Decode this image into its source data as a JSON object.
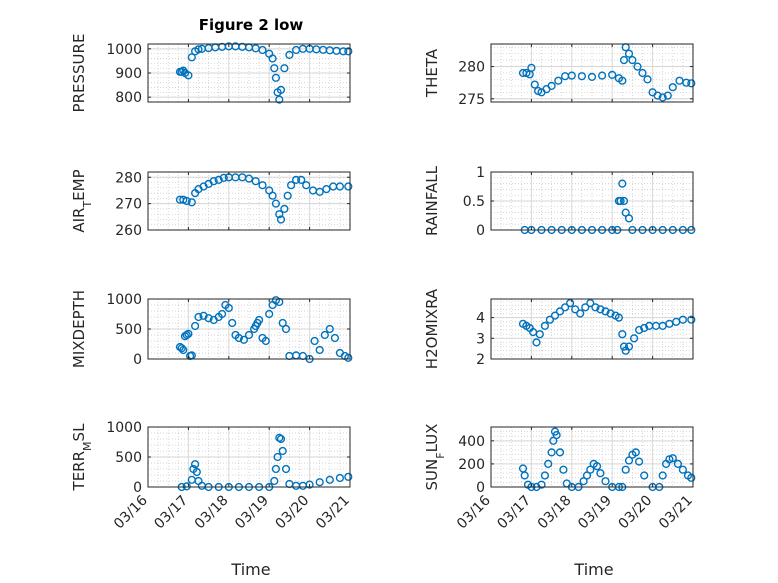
{
  "figure": {
    "title": "Figure 2 low"
  },
  "style": {
    "marker_color": "#0072BD",
    "axis_color": "#262626",
    "grid_color": "#d9d9d9"
  },
  "x_axis": {
    "label": "Time",
    "tick_labels": [
      "03/16",
      "03/17",
      "03/18",
      "03/19",
      "03/20",
      "03/21"
    ]
  },
  "chart_data": [
    {
      "type": "scatter",
      "ylabel": "PRESSURE",
      "ylim": [
        780,
        1020
      ],
      "yticks": [
        800,
        900,
        1000
      ],
      "grid": true,
      "x": [
        "03/16 19:00",
        "03/16 20:00",
        "03/16 21:00",
        "03/16 22:00",
        "03/17 00:00",
        "03/17 02:00",
        "03/17 04:00",
        "03/17 06:00",
        "03/17 08:00",
        "03/17 12:00",
        "03/17 16:00",
        "03/17 20:00",
        "03/18 00:00",
        "03/18 04:00",
        "03/18 08:00",
        "03/18 12:00",
        "03/18 16:00",
        "03/18 20:00",
        "03/19 00:00",
        "03/19 02:00",
        "03/19 03:00",
        "03/19 04:00",
        "03/19 05:00",
        "03/19 06:00",
        "03/19 07:00",
        "03/19 09:00",
        "03/19 12:00",
        "03/19 16:00",
        "03/19 20:00",
        "03/20 00:00",
        "03/20 04:00",
        "03/20 08:00",
        "03/20 12:00",
        "03/20 16:00",
        "03/20 20:00",
        "03/20 23:00"
      ],
      "values": [
        905,
        905,
        910,
        900,
        890,
        965,
        990,
        998,
        1000,
        1003,
        1006,
        1008,
        1010,
        1010,
        1008,
        1006,
        1002,
        995,
        980,
        960,
        920,
        880,
        820,
        790,
        830,
        920,
        975,
        995,
        1000,
        1000,
        998,
        996,
        994,
        992,
        990,
        990
      ]
    },
    {
      "type": "scatter",
      "ylabel": "THETA",
      "ylim": [
        274.5,
        283.5
      ],
      "yticks": [
        275,
        280
      ],
      "grid": true,
      "x": [
        "03/16 19:00",
        "03/16 21:00",
        "03/16 23:00",
        "03/17 00:00",
        "03/17 02:00",
        "03/17 04:00",
        "03/17 06:00",
        "03/17 09:00",
        "03/17 12:00",
        "03/17 16:00",
        "03/17 20:00",
        "03/18 00:00",
        "03/18 06:00",
        "03/18 12:00",
        "03/18 18:00",
        "03/19 00:00",
        "03/19 04:00",
        "03/19 06:00",
        "03/19 07:00",
        "03/19 08:00",
        "03/19 10:00",
        "03/19 12:00",
        "03/19 15:00",
        "03/19 18:00",
        "03/19 21:00",
        "03/20 00:00",
        "03/20 03:00",
        "03/20 06:00",
        "03/20 09:00",
        "03/20 12:00",
        "03/20 16:00",
        "03/20 20:00",
        "03/20 23:00"
      ],
      "values": [
        279,
        279,
        278.8,
        279.8,
        277.2,
        276.2,
        276,
        276.5,
        277,
        277.8,
        278.5,
        278.6,
        278.5,
        278.4,
        278.6,
        278.7,
        278.2,
        277.8,
        281,
        283,
        282,
        281,
        280,
        279,
        278,
        276,
        275.5,
        275.2,
        275.5,
        276.8,
        277.8,
        277.5,
        277.4
      ]
    },
    {
      "type": "scatter",
      "ylabel": "AIR_TEMP",
      "ylim": [
        260,
        282
      ],
      "yticks": [
        260,
        270,
        280
      ],
      "grid": true,
      "x": [
        "03/16 19:00",
        "03/16 21:00",
        "03/16 23:00",
        "03/17 02:00",
        "03/17 04:00",
        "03/17 06:00",
        "03/17 09:00",
        "03/17 12:00",
        "03/17 15:00",
        "03/17 18:00",
        "03/17 21:00",
        "03/18 00:00",
        "03/18 04:00",
        "03/18 08:00",
        "03/18 12:00",
        "03/18 16:00",
        "03/18 20:00",
        "03/19 00:00",
        "03/19 02:00",
        "03/19 04:00",
        "03/19 06:00",
        "03/19 07:00",
        "03/19 09:00",
        "03/19 11:00",
        "03/19 13:00",
        "03/19 16:00",
        "03/19 19:00",
        "03/19 22:00",
        "03/20 02:00",
        "03/20 06:00",
        "03/20 10:00",
        "03/20 14:00",
        "03/20 18:00",
        "03/20 23:00"
      ],
      "values": [
        271.5,
        271.5,
        271,
        270.5,
        274,
        275.5,
        276.5,
        277.5,
        278.5,
        279,
        279.8,
        280,
        280,
        280,
        279.5,
        278.5,
        277,
        275,
        273,
        270,
        266,
        264,
        268,
        273,
        277,
        279,
        279,
        277,
        275,
        274.5,
        275.5,
        276.5,
        276.5,
        276.5
      ]
    },
    {
      "type": "scatter",
      "ylabel": "RAINFALL",
      "ylim": [
        0,
        1
      ],
      "yticks": [
        0,
        0.5,
        1
      ],
      "grid": true,
      "x": [
        "03/16 20:00",
        "03/17 00:00",
        "03/17 06:00",
        "03/17 12:00",
        "03/17 18:00",
        "03/18 00:00",
        "03/18 06:00",
        "03/18 12:00",
        "03/18 18:00",
        "03/19 00:00",
        "03/19 03:00",
        "03/19 04:00",
        "03/19 05:00",
        "03/19 06:00",
        "03/19 07:00",
        "03/19 08:00",
        "03/19 10:00",
        "03/19 12:00",
        "03/19 18:00",
        "03/20 00:00",
        "03/20 06:00",
        "03/20 12:00",
        "03/20 18:00",
        "03/20 23:00"
      ],
      "values": [
        0,
        0,
        0,
        0,
        0,
        0,
        0,
        0,
        0,
        0,
        0,
        0.5,
        0.5,
        0.8,
        0.5,
        0.3,
        0.2,
        0,
        0,
        0,
        0,
        0,
        0,
        0
      ]
    },
    {
      "type": "scatter",
      "ylabel": "MIXDEPTH",
      "ylim": [
        0,
        1000
      ],
      "yticks": [
        0,
        500,
        1000
      ],
      "grid": true,
      "x": [
        "03/16 19:00",
        "03/16 20:00",
        "03/16 21:00",
        "03/16 22:00",
        "03/16 23:00",
        "03/17 00:00",
        "03/17 01:00",
        "03/17 02:00",
        "03/17 04:00",
        "03/17 06:00",
        "03/17 09:00",
        "03/17 12:00",
        "03/17 15:00",
        "03/17 18:00",
        "03/17 20:00",
        "03/17 22:00",
        "03/18 00:00",
        "03/18 02:00",
        "03/18 04:00",
        "03/18 06:00",
        "03/18 09:00",
        "03/18 12:00",
        "03/18 15:00",
        "03/18 16:00",
        "03/18 17:00",
        "03/18 18:00",
        "03/18 20:00",
        "03/18 22:00",
        "03/19 00:00",
        "03/19 02:00",
        "03/19 04:00",
        "03/19 06:00",
        "03/19 08:00",
        "03/19 10:00",
        "03/19 12:00",
        "03/19 16:00",
        "03/19 20:00",
        "03/20 00:00",
        "03/20 03:00",
        "03/20 06:00",
        "03/20 09:00",
        "03/20 12:00",
        "03/20 15:00",
        "03/20 18:00",
        "03/20 21:00",
        "03/20 23:00"
      ],
      "values": [
        200,
        180,
        150,
        380,
        400,
        420,
        50,
        60,
        550,
        700,
        720,
        680,
        650,
        700,
        750,
        900,
        850,
        600,
        400,
        350,
        320,
        400,
        500,
        550,
        600,
        650,
        350,
        300,
        750,
        900,
        980,
        950,
        600,
        500,
        50,
        60,
        50,
        0,
        300,
        150,
        400,
        500,
        350,
        100,
        50,
        20
      ]
    },
    {
      "type": "scatter",
      "ylabel": "H2OMIXRA",
      "ylim": [
        2,
        4.9
      ],
      "yticks": [
        2,
        3,
        4
      ],
      "grid": true,
      "x": [
        "03/16 19:00",
        "03/16 21:00",
        "03/16 23:00",
        "03/17 01:00",
        "03/17 03:00",
        "03/17 05:00",
        "03/17 08:00",
        "03/17 11:00",
        "03/17 14:00",
        "03/17 17:00",
        "03/17 20:00",
        "03/17 23:00",
        "03/18 02:00",
        "03/18 05:00",
        "03/18 08:00",
        "03/18 11:00",
        "03/18 14:00",
        "03/18 17:00",
        "03/18 20:00",
        "03/18 23:00",
        "03/19 02:00",
        "03/19 04:00",
        "03/19 06:00",
        "03/19 07:00",
        "03/19 08:00",
        "03/19 10:00",
        "03/19 13:00",
        "03/19 16:00",
        "03/19 19:00",
        "03/19 22:00",
        "03/20 02:00",
        "03/20 06:00",
        "03/20 10:00",
        "03/20 14:00",
        "03/20 18:00",
        "03/20 23:00"
      ],
      "values": [
        3.7,
        3.6,
        3.5,
        3.3,
        2.8,
        3.2,
        3.6,
        3.9,
        4.1,
        4.3,
        4.5,
        4.7,
        4.4,
        4.2,
        4.5,
        4.7,
        4.5,
        4.4,
        4.3,
        4.2,
        4.1,
        4.0,
        3.2,
        2.6,
        2.4,
        2.6,
        3.0,
        3.4,
        3.5,
        3.6,
        3.6,
        3.6,
        3.7,
        3.8,
        3.9,
        3.9
      ]
    },
    {
      "type": "scatter",
      "ylabel": "TERR_MSL",
      "ylim": [
        0,
        1000
      ],
      "yticks": [
        0,
        500,
        1000
      ],
      "grid": true,
      "x": [
        "03/16 20:00",
        "03/16 23:00",
        "03/17 02:00",
        "03/17 03:00",
        "03/17 04:00",
        "03/17 05:00",
        "03/17 06:00",
        "03/17 08:00",
        "03/17 12:00",
        "03/17 18:00",
        "03/18 00:00",
        "03/18 06:00",
        "03/18 12:00",
        "03/18 18:00",
        "03/19 00:00",
        "03/19 03:00",
        "03/19 04:00",
        "03/19 05:00",
        "03/19 06:00",
        "03/19 07:00",
        "03/19 08:00",
        "03/19 10:00",
        "03/19 12:00",
        "03/19 16:00",
        "03/19 20:00",
        "03/20 00:00",
        "03/20 06:00",
        "03/20 12:00",
        "03/20 18:00",
        "03/20 23:00"
      ],
      "values": [
        0,
        10,
        120,
        300,
        380,
        250,
        100,
        20,
        0,
        0,
        0,
        0,
        0,
        0,
        0,
        100,
        300,
        500,
        820,
        800,
        600,
        300,
        50,
        20,
        20,
        40,
        80,
        120,
        150,
        170
      ]
    },
    {
      "type": "scatter",
      "ylabel": "SUN_FLUX",
      "ylim": [
        0,
        520
      ],
      "yticks": [
        0,
        200,
        400
      ],
      "grid": true,
      "x": [
        "03/16 19:00",
        "03/16 20:00",
        "03/16 22:00",
        "03/17 00:00",
        "03/17 03:00",
        "03/17 06:00",
        "03/17 08:00",
        "03/17 10:00",
        "03/17 12:00",
        "03/17 13:00",
        "03/17 14:00",
        "03/17 15:00",
        "03/17 17:00",
        "03/17 19:00",
        "03/17 21:00",
        "03/18 00:00",
        "03/18 04:00",
        "03/18 07:00",
        "03/18 09:00",
        "03/18 11:00",
        "03/18 13:00",
        "03/18 15:00",
        "03/18 17:00",
        "03/18 20:00",
        "03/19 00:00",
        "03/19 04:00",
        "03/19 06:00",
        "03/19 08:00",
        "03/19 10:00",
        "03/19 12:00",
        "03/19 14:00",
        "03/19 16:00",
        "03/19 19:00",
        "03/20 00:00",
        "03/20 04:00",
        "03/20 06:00",
        "03/20 08:00",
        "03/20 10:00",
        "03/20 12:00",
        "03/20 15:00",
        "03/20 18:00",
        "03/20 21:00",
        "03/20 23:00"
      ],
      "values": [
        160,
        100,
        20,
        0,
        0,
        20,
        100,
        200,
        300,
        400,
        480,
        450,
        300,
        150,
        30,
        0,
        0,
        50,
        100,
        150,
        200,
        180,
        120,
        50,
        0,
        0,
        0,
        150,
        230,
        280,
        300,
        220,
        100,
        0,
        0,
        100,
        200,
        240,
        250,
        200,
        150,
        100,
        80
      ]
    }
  ]
}
